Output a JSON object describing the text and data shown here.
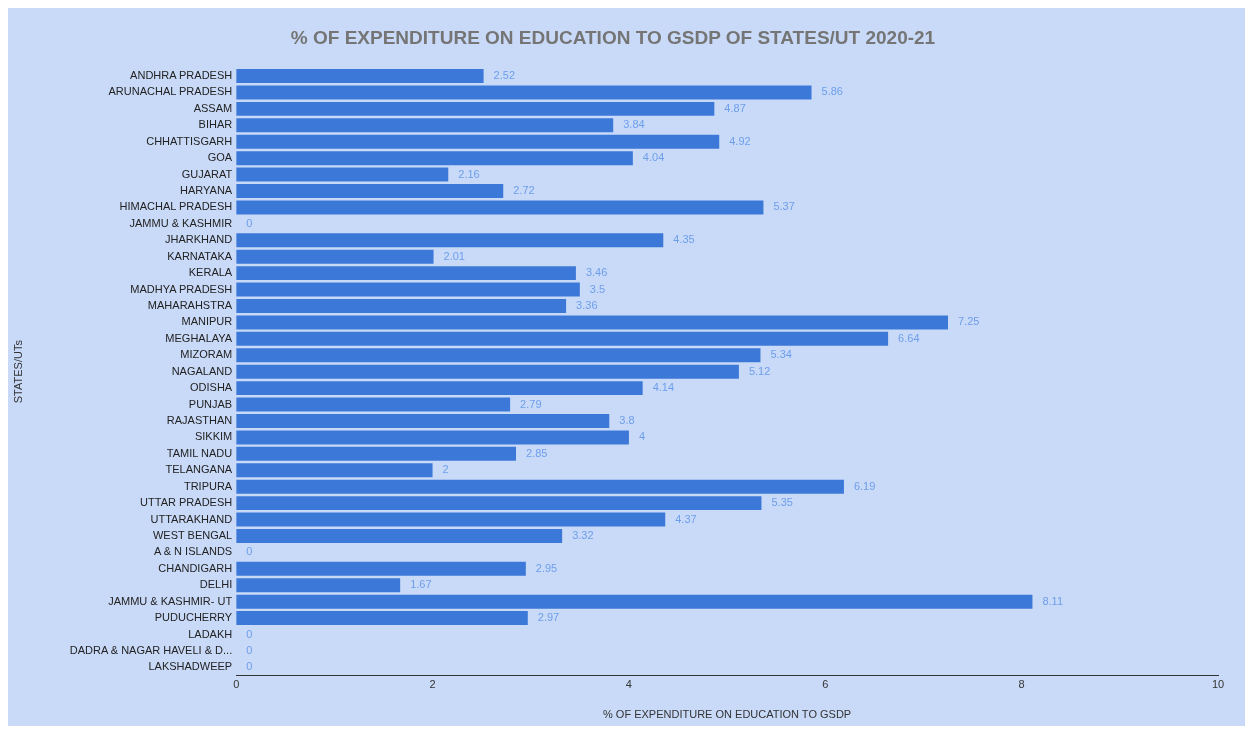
{
  "chart_data": {
    "type": "bar",
    "orientation": "horizontal",
    "title": "% OF EXPENDITURE ON EDUCATION TO GSDP OF STATES/UT 2020-21",
    "xlabel": "% OF EXPENDITURE ON EDUCATION TO GSDP",
    "ylabel": "STATES/UTs",
    "categories": [
      "ANDHRA PRADESH",
      "ARUNACHAL PRADESH",
      "ASSAM",
      "BIHAR",
      "CHHATTISGARH",
      "GOA",
      "GUJARAT",
      "HARYANA",
      "HIMACHAL PRADESH",
      "JAMMU & KASHMIR",
      "JHARKHAND",
      "KARNATAKA",
      "KERALA",
      "MADHYA PRADESH",
      "MAHARAHSTRA",
      "MANIPUR",
      "MEGHALAYA",
      "MIZORAM",
      "NAGALAND",
      "ODISHA",
      "PUNJAB",
      "RAJASTHAN",
      "SIKKIM",
      "TAMIL NADU",
      "TELANGANA",
      "TRIPURA",
      "UTTAR PRADESH",
      "UTTARAKHAND",
      "WEST BENGAL",
      "A & N ISLANDS",
      "CHANDIGARH",
      "DELHI",
      "JAMMU & KASHMIR- UT",
      "PUDUCHERRY",
      "LADAKH",
      "DADRA & NAGAR HAVELI & D...",
      "LAKSHADWEEP"
    ],
    "values": [
      2.52,
      5.86,
      4.87,
      3.84,
      4.92,
      4.04,
      2.16,
      2.72,
      5.37,
      0,
      4.35,
      2.01,
      3.46,
      3.5,
      3.36,
      7.25,
      6.64,
      5.34,
      5.12,
      4.14,
      2.79,
      3.8,
      4,
      2.85,
      2,
      6.19,
      5.35,
      4.37,
      3.32,
      0,
      2.95,
      1.67,
      8.11,
      2.97,
      0,
      0,
      0
    ],
    "color": "#3c78d8",
    "xlim": [
      0,
      10
    ],
    "xticks": [
      0,
      2,
      4,
      6,
      8,
      10
    ],
    "data_labels": true,
    "grid": false,
    "legend": false
  }
}
